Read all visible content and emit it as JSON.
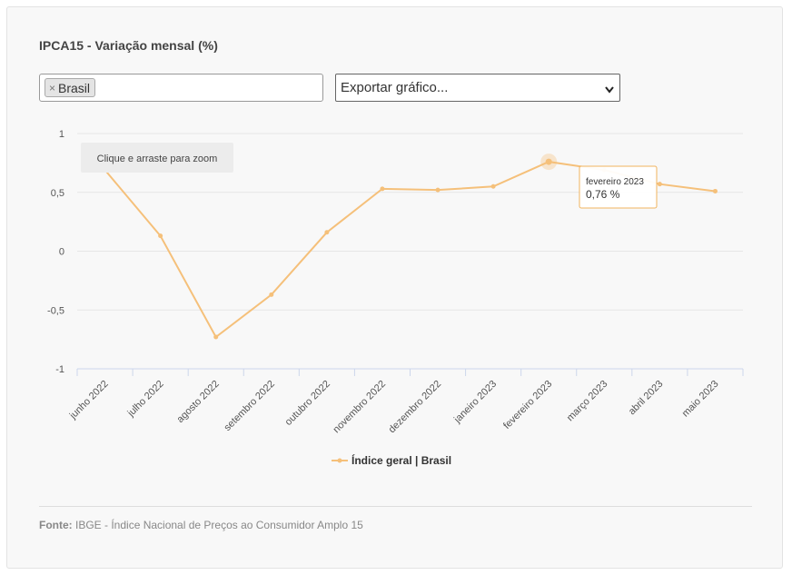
{
  "panel": {
    "title": "IPCA15 - Variação mensal (%)"
  },
  "filter": {
    "tag_label": "Brasil",
    "tag_remove_symbol": "×"
  },
  "export": {
    "selected": "Exportar gráfico..."
  },
  "zoom_hint": "Clique e arraste para zoom",
  "tooltip": {
    "title": "fevereiro 2023",
    "value": "0,76 %"
  },
  "colors": {
    "series": "#f5c07a",
    "tooltip_border": "#f0b35e",
    "grid": "#e6e6e6",
    "axis": "#ccd6eb"
  },
  "chart_data": {
    "type": "line",
    "title": "IPCA15 - Variação mensal (%)",
    "xlabel": "",
    "ylabel": "",
    "ylim": [
      -1,
      1
    ],
    "y_ticks": [
      1,
      0.5,
      0,
      -0.5,
      -1
    ],
    "y_tick_labels": [
      "1",
      "0,5",
      "0",
      "-0,5",
      "-1"
    ],
    "categories": [
      "junho 2022",
      "julho 2022",
      "agosto 2022",
      "setembro 2022",
      "outubro 2022",
      "novembro 2022",
      "dezembro 2022",
      "janeiro 2023",
      "fevereiro 2023",
      "março 2023",
      "abril 2023",
      "maio 2023"
    ],
    "series": [
      {
        "name": "Índice geral | Brasil",
        "values": [
          0.69,
          0.13,
          -0.73,
          -0.37,
          0.16,
          0.53,
          0.52,
          0.55,
          0.76,
          0.69,
          0.57,
          0.51
        ]
      }
    ],
    "highlighted_index": 8,
    "legend": "bottom-center",
    "grid": true
  },
  "footer": {
    "source_label": "Fonte:",
    "source_text": "IBGE - Índice Nacional de Preços ao Consumidor Amplo 15"
  }
}
